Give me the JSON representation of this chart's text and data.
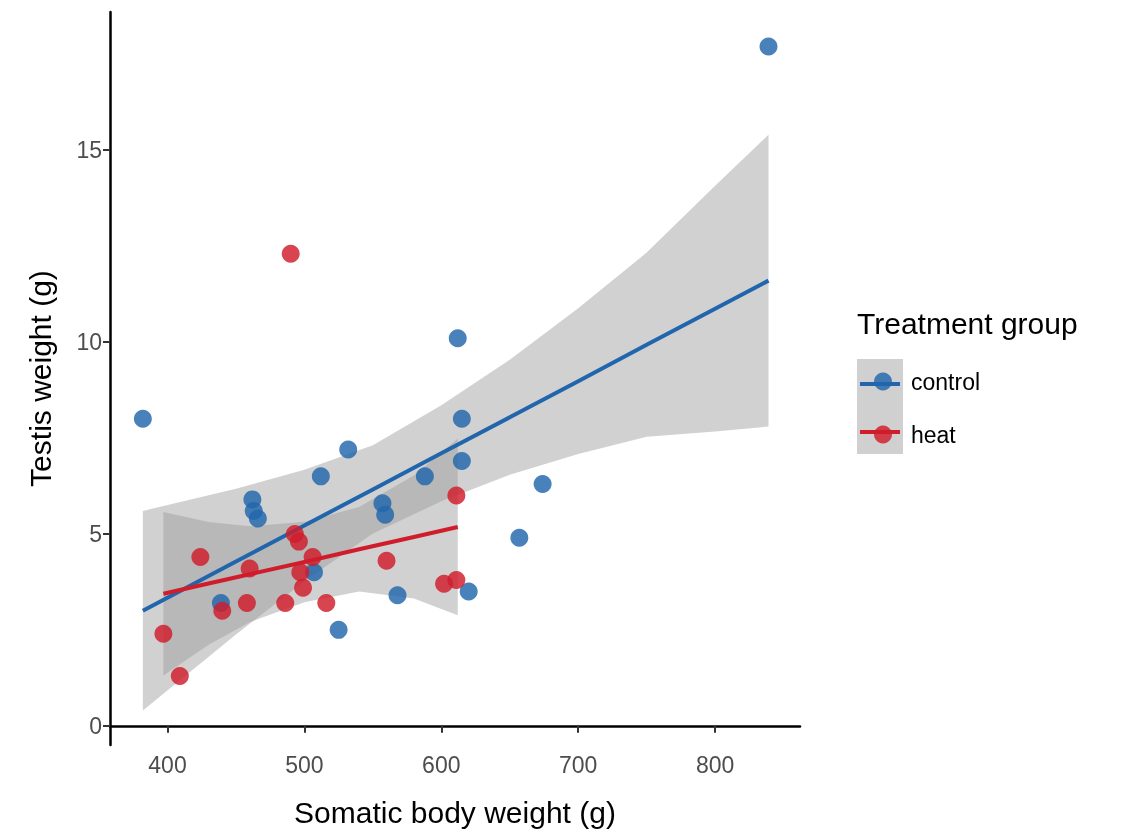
{
  "chart_data": {
    "type": "scatter",
    "xlabel": "Somatic body weight (g)",
    "ylabel": "Testis weight (g)",
    "legend_title": "Treatment group",
    "legend": "right",
    "grid": false,
    "marker": "circle",
    "xlim": [
      358,
      862
    ],
    "xticks": [
      400,
      500,
      600,
      700,
      800
    ],
    "ylim": [
      -0.5,
      18.6
    ],
    "yticks": [
      0,
      5,
      10,
      15
    ],
    "series": [
      {
        "name": "control",
        "color": "#2166ac",
        "x": [
          382,
          839,
          612,
          532,
          512,
          462,
          463,
          466,
          557,
          559,
          588,
          615,
          615,
          674,
          657,
          507,
          439,
          568,
          620,
          525
        ],
        "values": [
          8.0,
          17.7,
          10.1,
          7.2,
          6.5,
          5.9,
          5.6,
          5.4,
          5.8,
          5.5,
          6.5,
          8.0,
          6.9,
          6.3,
          4.9,
          4.0,
          3.2,
          3.4,
          3.5,
          2.5
        ]
      },
      {
        "name": "heat",
        "color": "#d01c2b",
        "x": [
          490,
          424,
          460,
          493,
          496,
          506,
          497,
          499,
          458,
          440,
          486,
          516,
          560,
          611,
          602,
          611,
          397,
          409
        ],
        "values": [
          12.3,
          4.4,
          4.1,
          5.0,
          4.8,
          4.4,
          4.0,
          3.6,
          3.2,
          3.0,
          3.2,
          3.2,
          4.3,
          6.0,
          3.7,
          3.8,
          2.4,
          1.3
        ]
      },
      {
        "type": "line",
        "marker": "none",
        "color": "#2166ac",
        "x": [
          382,
          450,
          500,
          550,
          600,
          650,
          700,
          750,
          800,
          839
        ],
        "values": [
          3.0,
          4.28,
          5.22,
          6.16,
          7.1,
          8.04,
          8.98,
          9.93,
          10.87,
          11.6
        ],
        "lower": [
          0.4,
          2.38,
          3.77,
          5.01,
          5.85,
          6.54,
          7.08,
          7.53,
          7.67,
          7.8
        ],
        "upper": [
          5.6,
          6.18,
          6.67,
          7.31,
          8.35,
          9.54,
          10.88,
          12.33,
          14.07,
          15.4
        ]
      },
      {
        "type": "line",
        "marker": "none",
        "color": "#d01c2b",
        "x": [
          397,
          430,
          460,
          500,
          540,
          580,
          612
        ],
        "values": [
          3.44,
          3.71,
          3.95,
          4.27,
          4.6,
          4.92,
          5.18
        ],
        "lower": [
          1.31,
          2.11,
          2.7,
          3.22,
          3.5,
          3.32,
          2.88
        ],
        "upper": [
          5.57,
          5.31,
          5.2,
          5.32,
          5.7,
          6.52,
          7.48
        ]
      }
    ]
  }
}
